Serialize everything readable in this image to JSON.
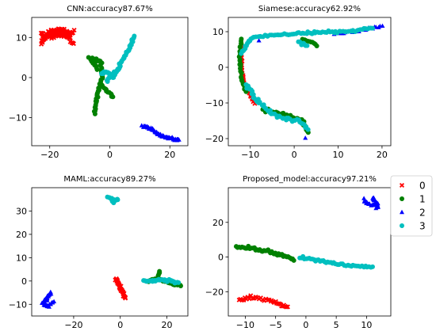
{
  "colors": {
    "0": "#ff0000",
    "1": "#008000",
    "2": "#0000ff",
    "3": "#00bfbf"
  },
  "legend": {
    "entries": [
      {
        "label": "0",
        "marker": "x"
      },
      {
        "label": "1",
        "marker": "circle"
      },
      {
        "label": "2",
        "marker": "triangle"
      },
      {
        "label": "3",
        "marker": "circle"
      }
    ],
    "placement": "right of bottom-right panel"
  },
  "chart_data": [
    {
      "type": "scatter",
      "title": "CNN:accuracy87.67%",
      "xlim": [
        -26,
        26
      ],
      "ylim": [
        -17,
        15
      ],
      "xticks": [
        -20,
        0,
        20
      ],
      "yticks": [
        -10,
        0,
        10
      ],
      "series": [
        {
          "name": "0",
          "strokes": [
            {
              "pts": [
                [
                  -23,
                  9
                ],
                [
                  -20,
                  11.5
                ],
                [
                  -16,
                  12
                ],
                [
                  -14,
                  11
                ],
                [
                  -12,
                  11.5
                ]
              ],
              "spread": 0.8,
              "n": 70
            },
            {
              "pts": [
                [
                  -23,
                  11
                ],
                [
                  -20,
                  10
                ],
                [
                  -17,
                  10.5
                ],
                [
                  -13,
                  10
                ]
              ],
              "spread": 0.6,
              "n": 40
            },
            {
              "pts": [
                [
                  -13,
                  9
                ],
                [
                  -12,
                  8.5
                ]
              ],
              "spread": 0.3,
              "n": 4
            }
          ]
        },
        {
          "name": "1",
          "strokes": [
            {
              "pts": [
                [
                  -6,
                  5
                ],
                [
                  -3,
                  4
                ],
                [
                  -2.5,
                  0
                ],
                [
                  -4,
                  -4
                ],
                [
                  -5,
                  -9
                ]
              ],
              "spread": 0.5,
              "n": 45
            },
            {
              "pts": [
                [
                  -2.5,
                  -2
                ],
                [
                  0,
                  -4
                ],
                [
                  1,
                  -5
                ]
              ],
              "spread": 0.4,
              "n": 12
            },
            {
              "pts": [
                [
                  -4,
                  2
                ],
                [
                  -6,
                  4
                ],
                [
                  -7,
                  5
                ]
              ],
              "spread": 0.4,
              "n": 10
            }
          ]
        },
        {
          "name": "2",
          "strokes": [
            {
              "pts": [
                [
                  11,
                  -12
                ],
                [
                  14,
                  -13
                ],
                [
                  17,
                  -14.5
                ],
                [
                  20,
                  -15
                ],
                [
                  23,
                  -15.5
                ]
              ],
              "spread": 0.6,
              "n": 60
            }
          ]
        },
        {
          "name": "3",
          "strokes": [
            {
              "pts": [
                [
                  -3,
                  1
                ],
                [
                  -1,
                  1.5
                ],
                [
                  1,
                  0
                ],
                [
                  4,
                  4
                ],
                [
                  7,
                  8
                ],
                [
                  8,
                  10
                ]
              ],
              "spread": 0.5,
              "n": 60
            },
            {
              "pts": [
                [
                  -1,
                  -1
                ],
                [
                  1,
                  1
                ],
                [
                  3,
                  2
                ]
              ],
              "spread": 0.5,
              "n": 15
            }
          ]
        }
      ]
    },
    {
      "type": "scatter",
      "title": "Siamese:accuracy62.92%",
      "xlim": [
        -15,
        22
      ],
      "ylim": [
        -22,
        14
      ],
      "xticks": [
        -10,
        0,
        10,
        20
      ],
      "yticks": [
        -20,
        -10,
        0,
        10
      ],
      "series": [
        {
          "name": "0",
          "strokes": [
            {
              "pts": [
                [
                  -12,
                  6
                ],
                [
                  -12,
                  0
                ],
                [
                  -11.5,
                  -4
                ],
                [
                  -10,
                  -8
                ],
                [
                  -9,
                  -10
                ]
              ],
              "spread": 0.3,
              "n": 35
            }
          ]
        },
        {
          "name": "1",
          "strokes": [
            {
              "pts": [
                [
                  -12,
                  8
                ],
                [
                  -12.5,
                  3
                ],
                [
                  -12,
                  -3
                ],
                [
                  -11,
                  -7
                ]
              ],
              "spread": 0.4,
              "n": 30
            },
            {
              "pts": [
                [
                  -7,
                  -12
                ],
                [
                  -3,
                  -13
                ],
                [
                  0,
                  -14
                ],
                [
                  2,
                  -15
                ],
                [
                  3,
                  -18
                ]
              ],
              "spread": 0.6,
              "n": 40
            },
            {
              "pts": [
                [
                  2,
                  8
                ],
                [
                  4,
                  7
                ],
                [
                  5,
                  6
                ]
              ],
              "spread": 0.4,
              "n": 10
            }
          ]
        },
        {
          "name": "2",
          "strokes": [
            {
              "pts": [
                [
                  9,
                  9.5
                ],
                [
                  14,
                  10
                ],
                [
                  17,
                  11
                ],
                [
                  20,
                  11.5
                ]
              ],
              "spread": 0.5,
              "n": 25
            },
            {
              "pts": [
                [
                  -8,
                  7.5
                ]
              ],
              "spread": 0.2,
              "n": 1
            },
            {
              "pts": [
                [
                  2.5,
                  -20
                ]
              ],
              "spread": 0.2,
              "n": 1
            }
          ]
        },
        {
          "name": "3",
          "strokes": [
            {
              "pts": [
                [
                  -12,
                  4
                ],
                [
                  -10,
                  8
                ],
                [
                  -6,
                  9
                ],
                [
                  0,
                  9.5
                ],
                [
                  6,
                  9.8
                ],
                [
                  12,
                  10
                ],
                [
                  18,
                  11
                ]
              ],
              "spread": 0.4,
              "n": 80
            },
            {
              "pts": [
                [
                  -11,
                  -5
                ],
                [
                  -8,
                  -10
                ],
                [
                  -5,
                  -13
                ],
                [
                  -2,
                  -14.5
                ],
                [
                  1,
                  -15
                ],
                [
                  3,
                  -17
                ]
              ],
              "spread": 0.6,
              "n": 50
            },
            {
              "pts": [
                [
                  1,
                  7
                ],
                [
                  3,
                  6
                ]
              ],
              "spread": 0.4,
              "n": 8
            }
          ]
        }
      ]
    },
    {
      "type": "scatter",
      "title": "MAML:accuracy89.27%",
      "xlim": [
        -38,
        29
      ],
      "ylim": [
        -15,
        40
      ],
      "xticks": [
        -20,
        0,
        20
      ],
      "yticks": [
        -10,
        0,
        10,
        20,
        30
      ],
      "series": [
        {
          "name": "0",
          "strokes": [
            {
              "pts": [
                [
                  -2,
                  1
                ],
                [
                  -1,
                  -1
                ],
                [
                  0,
                  -3
                ],
                [
                  1,
                  -5
                ],
                [
                  2,
                  -7
                ]
              ],
              "spread": 0.7,
              "n": 40
            }
          ]
        },
        {
          "name": "1",
          "strokes": [
            {
              "pts": [
                [
                  12,
                  0
                ],
                [
                  16,
                  1
                ],
                [
                  19,
                  0
                ],
                [
                  22,
                  -1
                ],
                [
                  26,
                  -2
                ]
              ],
              "spread": 0.6,
              "n": 30
            },
            {
              "pts": [
                [
                  16,
                  2
                ],
                [
                  17,
                  4
                ]
              ],
              "spread": 0.4,
              "n": 5
            }
          ]
        },
        {
          "name": "2",
          "strokes": [
            {
              "pts": [
                [
                  -30,
                  -5
                ],
                [
                  -32,
                  -8
                ],
                [
                  -33,
                  -10
                ],
                [
                  -31,
                  -11
                ],
                [
                  -29,
                  -9
                ]
              ],
              "spread": 0.8,
              "n": 35
            }
          ]
        },
        {
          "name": "3",
          "strokes": [
            {
              "pts": [
                [
                  -5,
                  36
                ],
                [
                  -3,
                  34
                ],
                [
                  -1,
                  35
                ]
              ],
              "spread": 0.7,
              "n": 15
            },
            {
              "pts": [
                [
                  10,
                  0
                ],
                [
                  14,
                  0
                ],
                [
                  18,
                  0.5
                ],
                [
                  22,
                  0
                ],
                [
                  25,
                  -1
                ]
              ],
              "spread": 0.6,
              "n": 35
            }
          ]
        }
      ]
    },
    {
      "type": "scatter",
      "title": "Proposed_model:accuracy97.21%",
      "xlim": [
        -12.8,
        14
      ],
      "ylim": [
        -34,
        40
      ],
      "xticks": [
        -10,
        -5,
        0,
        5,
        10
      ],
      "yticks": [
        -20,
        0,
        20
      ],
      "series": [
        {
          "name": "0",
          "strokes": [
            {
              "pts": [
                [
                  -11,
                  -25
                ],
                [
                  -9,
                  -23
                ],
                [
                  -6,
                  -25
                ],
                [
                  -3,
                  -29
                ]
              ],
              "spread": 0.9,
              "n": 35
            }
          ]
        },
        {
          "name": "1",
          "strokes": [
            {
              "pts": [
                [
                  -11.5,
                  6
                ],
                [
                  -9,
                  5
                ],
                [
                  -6,
                  3
                ],
                [
                  -3,
                  0
                ],
                [
                  -2,
                  -1
                ]
              ],
              "spread": 1.0,
              "n": 45
            }
          ]
        },
        {
          "name": "2",
          "strokes": [
            {
              "pts": [
                [
                  9.5,
                  33
                ],
                [
                  10.5,
                  30
                ],
                [
                  12,
                  29
                ],
                [
                  11,
                  34
                ]
              ],
              "spread": 1.5,
              "n": 30
            }
          ]
        },
        {
          "name": "3",
          "strokes": [
            {
              "pts": [
                [
                  -1,
                  0
                ],
                [
                  2,
                  -2
                ],
                [
                  5,
                  -4
                ],
                [
                  8,
                  -5
                ],
                [
                  11,
                  -6
                ]
              ],
              "spread": 0.8,
              "n": 45
            }
          ]
        }
      ]
    }
  ]
}
